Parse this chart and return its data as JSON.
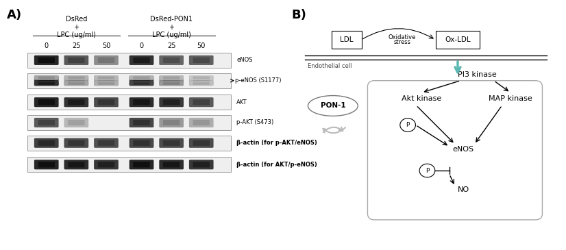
{
  "panel_A_label": "A)",
  "panel_B_label": "B)",
  "col_header_left_line1": "DsRed",
  "col_header_left_line2": "+",
  "col_header_left_line3": "LPC (ug/ml)",
  "col_header_right_line1": "DsRed-PON1",
  "col_header_right_line2": "+",
  "col_header_right_line3": "LPC (ug/ml)",
  "lane_labels": [
    "0",
    "25",
    "50",
    "0",
    "25",
    "50"
  ],
  "band_labels": [
    "eNOS",
    "p-eNOS (S1177)",
    "AKT",
    "p-AKT (S473)",
    "β-actin (for p-AKT/eNOS)",
    "β-actin (for AKT/p-eNOS)"
  ],
  "background_color": "#ffffff"
}
